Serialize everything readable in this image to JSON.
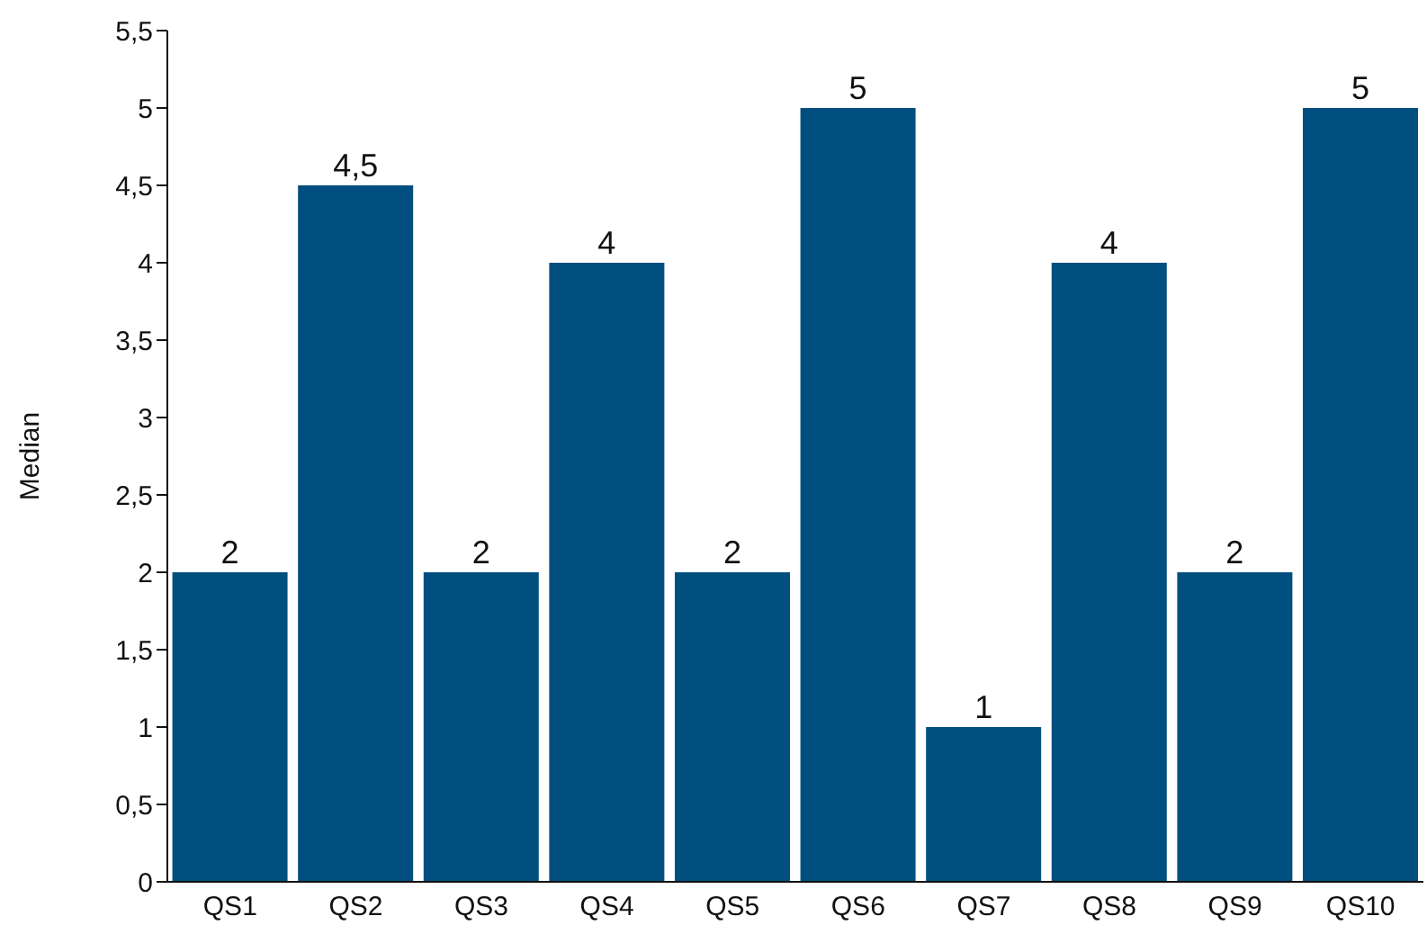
{
  "chart_data": {
    "type": "bar",
    "ylabel": "Median",
    "categories": [
      "QS1",
      "QS2",
      "QS3",
      "QS4",
      "QS5",
      "QS6",
      "QS7",
      "QS8",
      "QS9",
      "QS10"
    ],
    "values": [
      2,
      4.5,
      2,
      4,
      2,
      5,
      1,
      4,
      2,
      5
    ],
    "value_labels": [
      "2",
      "4,5",
      "2",
      "4",
      "2",
      "5",
      "1",
      "4",
      "2",
      "5"
    ],
    "color": "#004f7f",
    "ylim": [
      0,
      5.5
    ],
    "yticks": [
      0,
      {
        "value": 0.5,
        "label": "0,5"
      },
      1,
      {
        "value": 1.5,
        "label": "1,5"
      },
      2,
      {
        "value": 2.5,
        "label": "2,5"
      },
      3,
      {
        "value": 3.5,
        "label": "3,5"
      },
      4,
      {
        "value": 4.5,
        "label": "4,5"
      },
      5,
      {
        "value": 5.5,
        "label": "5,5"
      }
    ],
    "grid": false,
    "legend": false
  }
}
